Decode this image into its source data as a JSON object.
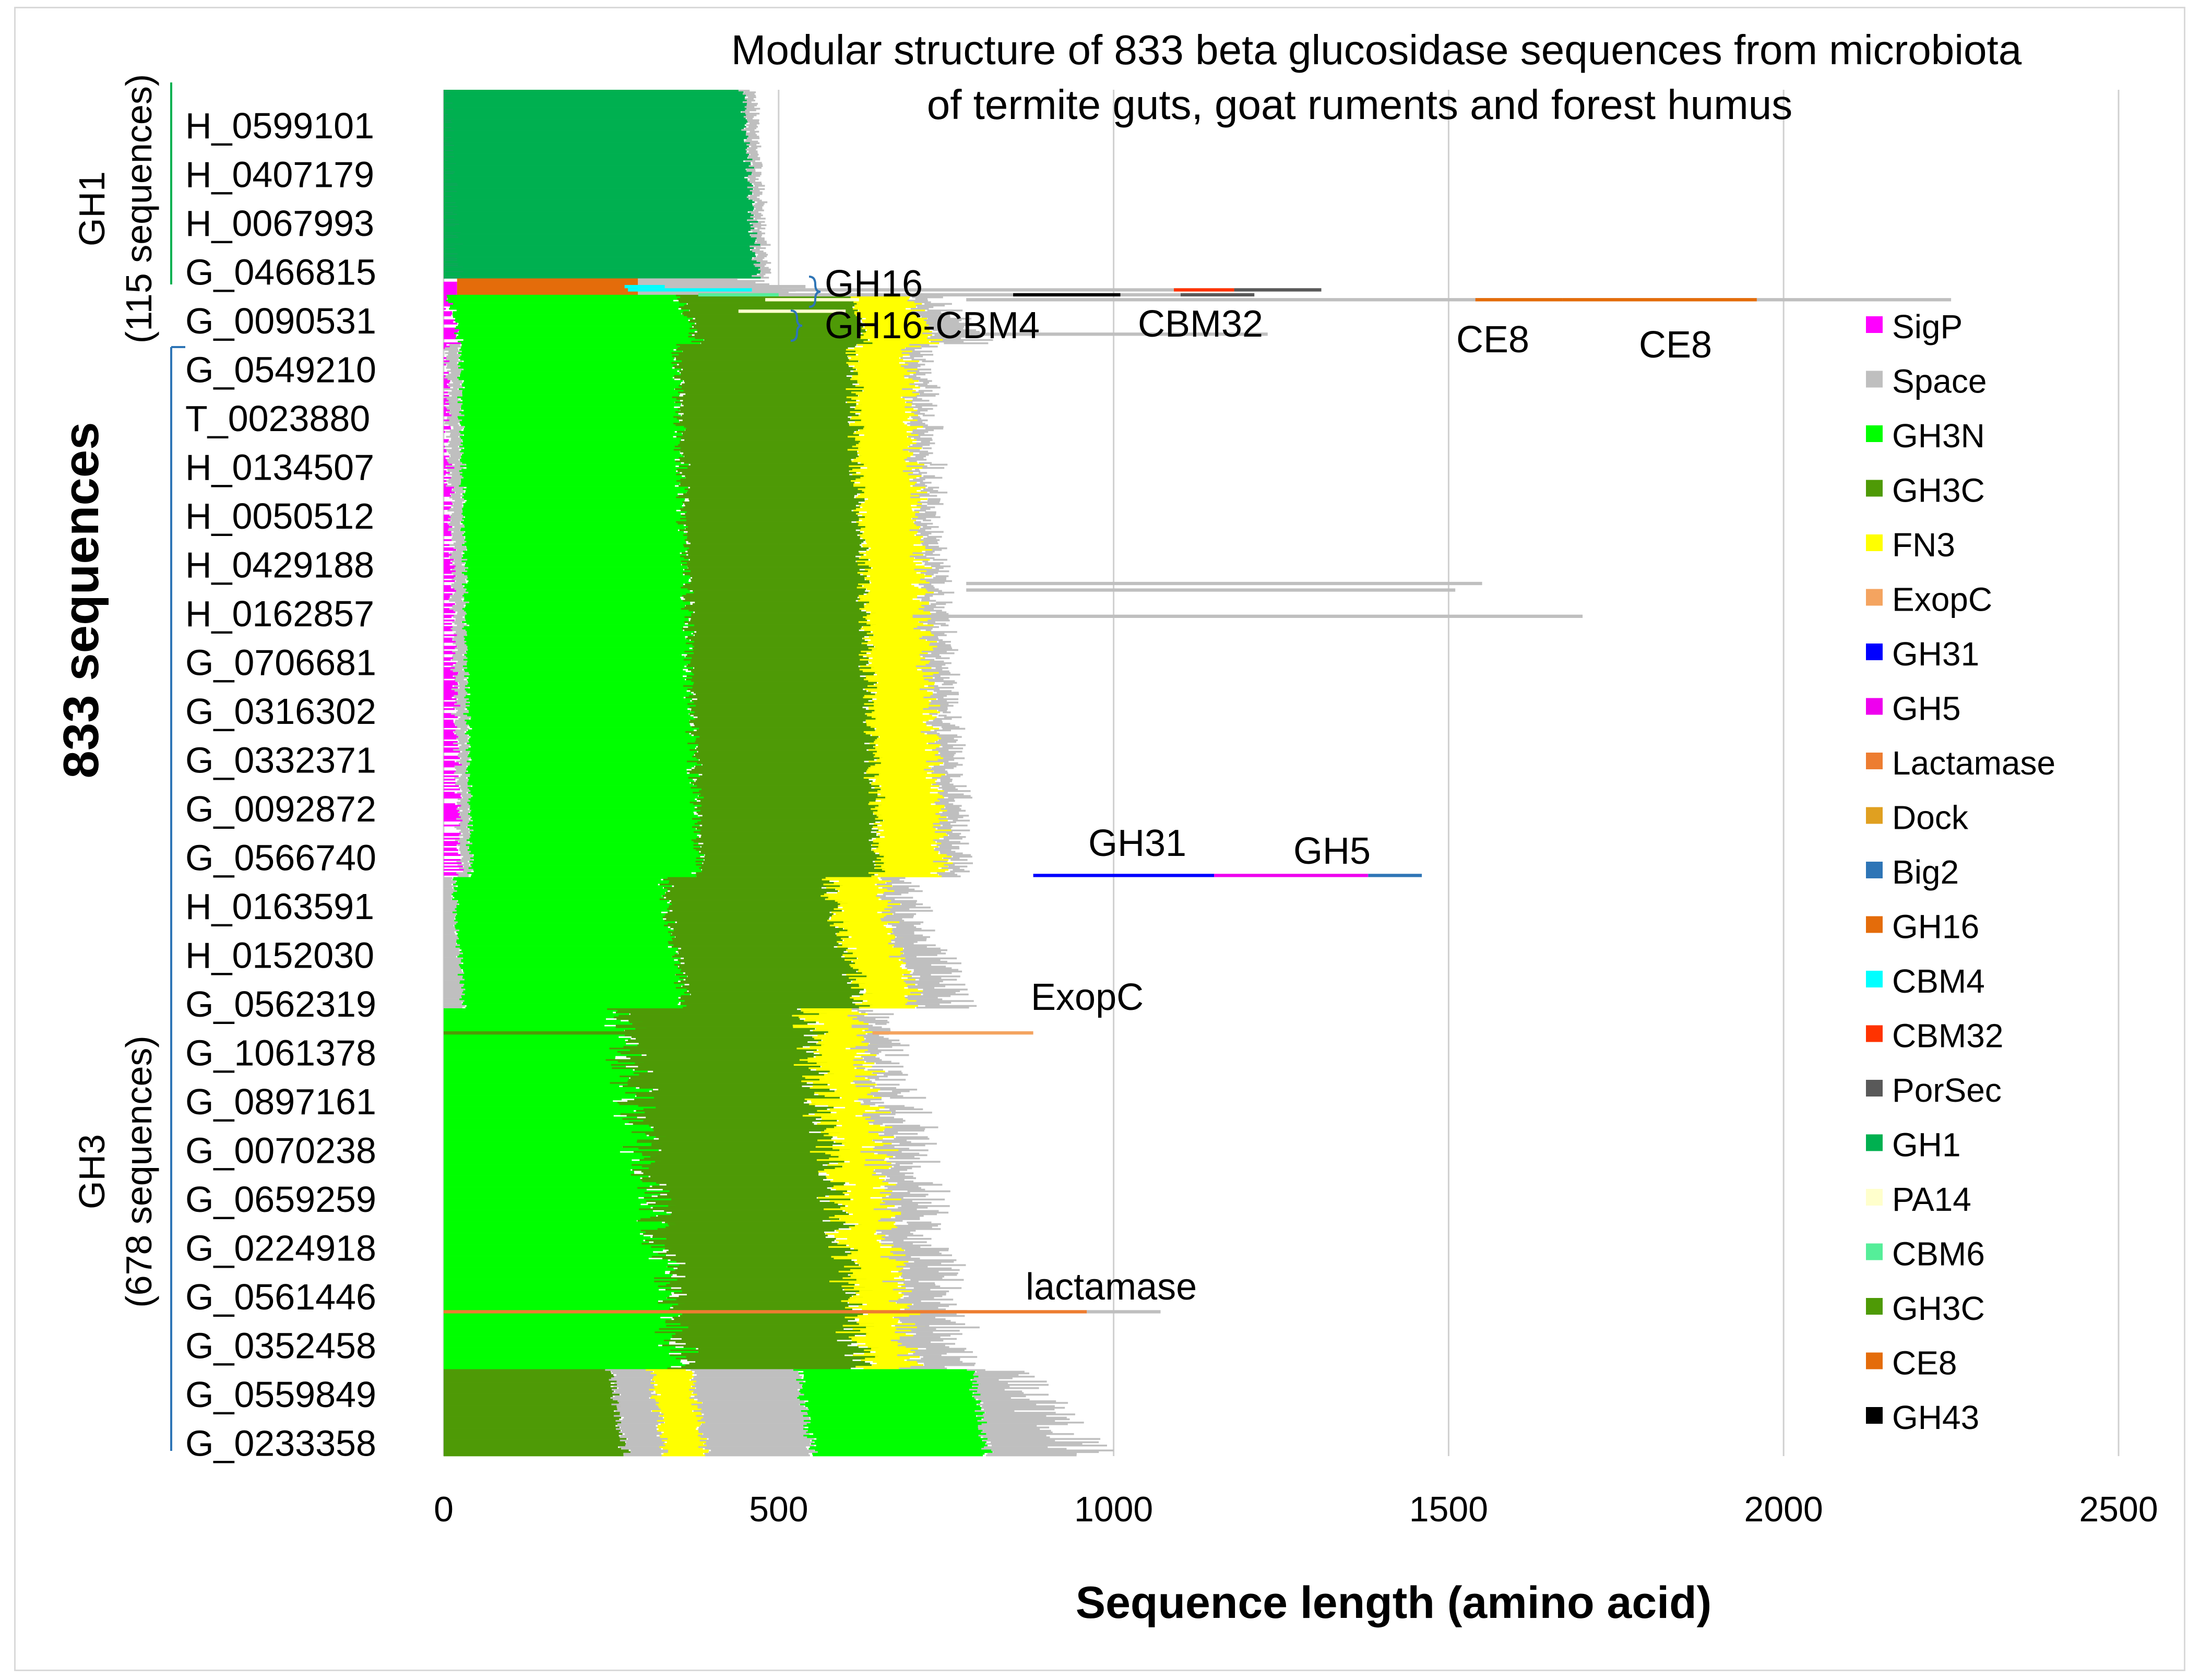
{
  "chart_data": {
    "type": "bar",
    "orientation": "horizontal",
    "stacked": true,
    "title": "Modular structure of 833 beta glucosidase sequences from microbiota of termite guts, goat ruments and forest humus",
    "xlabel": "Sequence length (amino acid)",
    "ylabel": "833 sequences",
    "xlim": [
      0,
      2500
    ],
    "xticks": [
      "0",
      "500",
      "1000",
      "1500",
      "2000",
      "2500"
    ],
    "grid": "vertical",
    "legend_position": "right",
    "groups": [
      {
        "label": "GH1",
        "sublabel": "(115 sequences)"
      },
      {
        "label": "GH3",
        "sublabel": "(678 sequences)"
      }
    ],
    "row_labels": [
      "H_0599101",
      "H_0407179",
      "H_0067993",
      "G_0466815",
      "G_0090531",
      "G_0549210",
      "T_0023880",
      "H_0134507",
      "H_0050512",
      "H_0429188",
      "H_0162857",
      "G_0706681",
      "G_0316302",
      "G_0332371",
      "G_0092872",
      "G_0566740",
      "H_0163591",
      "H_0152030",
      "G_0562319",
      "G_1061378",
      "G_0897161",
      "G_0070238",
      "G_0659259",
      "G_0224918",
      "G_0561446",
      "G_0352458",
      "G_0559849",
      "G_0233358"
    ],
    "legend": [
      {
        "name": "SigP",
        "color": "#ff00ff"
      },
      {
        "name": "Space",
        "color": "#bfbfbf"
      },
      {
        "name": "GH3N",
        "color": "#00ff00"
      },
      {
        "name": "GH3C",
        "color": "#4e9a06"
      },
      {
        "name": "FN3",
        "color": "#ffff00"
      },
      {
        "name": "ExopC",
        "color": "#f4a460"
      },
      {
        "name": "GH31",
        "color": "#0000ff"
      },
      {
        "name": "GH5",
        "color": "#ee00ee"
      },
      {
        "name": "Lactamase",
        "color": "#ed7d31"
      },
      {
        "name": "Dock",
        "color": "#e0a020"
      },
      {
        "name": "Big2",
        "color": "#2e75b6"
      },
      {
        "name": "GH16",
        "color": "#e46c0a"
      },
      {
        "name": "CBM4",
        "color": "#00ffff"
      },
      {
        "name": "CBM32",
        "color": "#ff3300"
      },
      {
        "name": "PorSec",
        "color": "#595959"
      },
      {
        "name": "GH1",
        "color": "#00b050"
      },
      {
        "name": "PA14",
        "color": "#ffffcc"
      },
      {
        "name": "CBM6",
        "color": "#55ee99"
      },
      {
        "name": "GH3C",
        "color": "#4e9a06"
      },
      {
        "name": "CE8",
        "color": "#e46c0a"
      },
      {
        "name": "GH43",
        "color": "#000000"
      }
    ],
    "annotations": [
      "GH16",
      "GH16-CBM4",
      "CBM32",
      "CE8",
      "CE8",
      "GH31",
      "GH5",
      "ExopC",
      "lactamase"
    ],
    "bands": [
      {
        "rows": [
          0,
          115
        ],
        "segments": [
          {
            "module": "SigP",
            "start": 0,
            "end": [
              0,
              30
            ]
          },
          {
            "module": "GH1",
            "start": 0,
            "end": [
              440,
              475
            ]
          },
          {
            "module": "Space",
            "start": [
              440,
              475
            ],
            "end": [
              455,
              490
            ]
          }
        ]
      },
      {
        "rows": [
          115,
          125
        ],
        "segments": [
          {
            "module": "SigP",
            "start": 0,
            "end": 20
          },
          {
            "module": "GH16",
            "start": 20,
            "end": 290
          },
          {
            "module": "Space",
            "start": 290,
            "end": [
              420,
              560
            ]
          }
        ]
      },
      {
        "rows": [
          125,
          155
        ],
        "segments": [
          {
            "module": "SigP",
            "start": 0,
            "end": [
              0,
              30
            ]
          },
          {
            "module": "GH3N",
            "start": [
              0,
              30
            ],
            "end": [
              340,
              390
            ]
          },
          {
            "module": "GH3C",
            "start": [
              340,
              390
            ],
            "end": [
              600,
              640
            ]
          },
          {
            "module": "FN3",
            "start": [
              600,
              640
            ],
            "end": [
              680,
              750
            ]
          },
          {
            "module": "Space",
            "start": [
              680,
              750
            ],
            "end": [
              700,
              820
            ]
          }
        ]
      },
      {
        "rows": [
          155,
          480
        ],
        "segments": [
          {
            "module": "SigP",
            "start": 0,
            "end": [
              0,
              30
            ]
          },
          {
            "module": "Space",
            "start": [
              0,
              30
            ],
            "end": [
              20,
              45
            ]
          },
          {
            "module": "GH3N",
            "start": [
              20,
              45
            ],
            "end": [
              340,
              390
            ]
          },
          {
            "module": "GH3C",
            "start": [
              340,
              390
            ],
            "end": [
              600,
              660
            ]
          },
          {
            "module": "FN3",
            "start": [
              600,
              660
            ],
            "end": [
              680,
              760
            ]
          },
          {
            "module": "Space",
            "start": [
              680,
              760
            ],
            "end": [
              700,
              790
            ]
          }
        ]
      },
      {
        "rows": [
          480,
          560
        ],
        "segments": [
          {
            "module": "Space",
            "start": 0,
            "end": [
              10,
              35
            ]
          },
          {
            "module": "GH3N",
            "start": [
              10,
              35
            ],
            "end": [
              320,
              370
            ]
          },
          {
            "module": "GH3C",
            "start": [
              320,
              370
            ],
            "end": [
              560,
              640
            ]
          },
          {
            "module": "FN3",
            "start": [
              560,
              640
            ],
            "end": [
              640,
              720
            ]
          },
          {
            "module": "Space",
            "start": [
              640,
              720
            ],
            "end": [
              660,
              800
            ]
          }
        ]
      },
      {
        "rows": [
          560,
          780
        ],
        "segments": [
          {
            "module": "GH3N",
            "start": 0,
            "end": [
              240,
              380
            ]
          },
          {
            "module": "GH3C",
            "start": [
              240,
              380
            ],
            "end": [
              520,
              650
            ]
          },
          {
            "module": "FN3",
            "start": [
              520,
              650
            ],
            "end": [
              600,
              720
            ]
          },
          {
            "module": "Space",
            "start": [
              600,
              720
            ],
            "end": [
              620,
              800
            ]
          }
        ]
      },
      {
        "rows": [
          780,
          833
        ],
        "segments": [
          {
            "module": "GH3C",
            "start": 0,
            "end": [
              240,
              280
            ]
          },
          {
            "module": "Space",
            "start": [
              240,
              280
            ],
            "end": [
              300,
              340
            ]
          },
          {
            "module": "FN3",
            "start": [
              300,
              340
            ],
            "end": [
              360,
              400
            ]
          },
          {
            "module": "Space",
            "start": [
              360,
              400
            ],
            "end": [
              520,
              560
            ]
          },
          {
            "module": "GH3N",
            "start": [
              520,
              560
            ],
            "end": [
              780,
              820
            ]
          },
          {
            "module": "Space",
            "start": [
              780,
              820
            ],
            "end": [
              800,
              1000
            ]
          }
        ]
      }
    ],
    "special_rows": [
      {
        "row": 119,
        "segments": [
          {
            "module": "Space",
            "start": 300,
            "end": 540
          },
          {
            "module": "CBM4",
            "start": 270,
            "end": 330
          }
        ]
      },
      {
        "row": 121,
        "segments": [
          {
            "module": "CBM4",
            "start": 275,
            "end": 460
          },
          {
            "module": "Space",
            "start": 460,
            "end": 1310
          },
          {
            "module": "CBM32",
            "start": 1090,
            "end": 1180
          },
          {
            "module": "PorSec",
            "start": 1180,
            "end": 1310
          }
        ]
      },
      {
        "row": 124,
        "segments": [
          {
            "module": "CBM6",
            "start": 380,
            "end": 500
          },
          {
            "module": "Space",
            "start": 500,
            "end": 1210
          },
          {
            "module": "GH43",
            "start": 850,
            "end": 1010
          },
          {
            "module": "PorSec",
            "start": 1100,
            "end": 1210
          }
        ]
      },
      {
        "row": 127,
        "segments": [
          {
            "module": "PA14",
            "start": 480,
            "end": 620
          },
          {
            "module": "Space",
            "start": 780,
            "end": 2250
          },
          {
            "module": "CE8",
            "start": 1540,
            "end": 1670
          },
          {
            "module": "CE8",
            "start": 1670,
            "end": 1960
          }
        ]
      },
      {
        "row": 134,
        "segments": [
          {
            "module": "PA14",
            "start": 440,
            "end": 600
          }
        ]
      },
      {
        "row": 148,
        "segments": [
          {
            "module": "Space",
            "start": 780,
            "end": 1230
          }
        ]
      },
      {
        "row": 300,
        "segments": [
          {
            "module": "Space",
            "start": 780,
            "end": 1550
          }
        ]
      },
      {
        "row": 304,
        "segments": [
          {
            "module": "Space",
            "start": 780,
            "end": 1510
          }
        ]
      },
      {
        "row": 320,
        "segments": [
          {
            "module": "Space",
            "start": 700,
            "end": 1700
          }
        ]
      },
      {
        "row": 478,
        "segments": [
          {
            "module": "GH31",
            "start": 880,
            "end": 1150
          },
          {
            "module": "GH5",
            "start": 1150,
            "end": 1380
          },
          {
            "module": "Big2",
            "start": 1380,
            "end": 1460
          }
        ]
      },
      {
        "row": 574,
        "segments": [
          {
            "module": "GH3C",
            "start": 0,
            "end": 530
          },
          {
            "module": "ExopC",
            "start": 640,
            "end": 880
          }
        ]
      },
      {
        "row": 744,
        "segments": [
          {
            "module": "Lactamase",
            "start": 0,
            "end": 960
          },
          {
            "module": "Space",
            "start": 960,
            "end": 1070
          }
        ]
      }
    ]
  }
}
